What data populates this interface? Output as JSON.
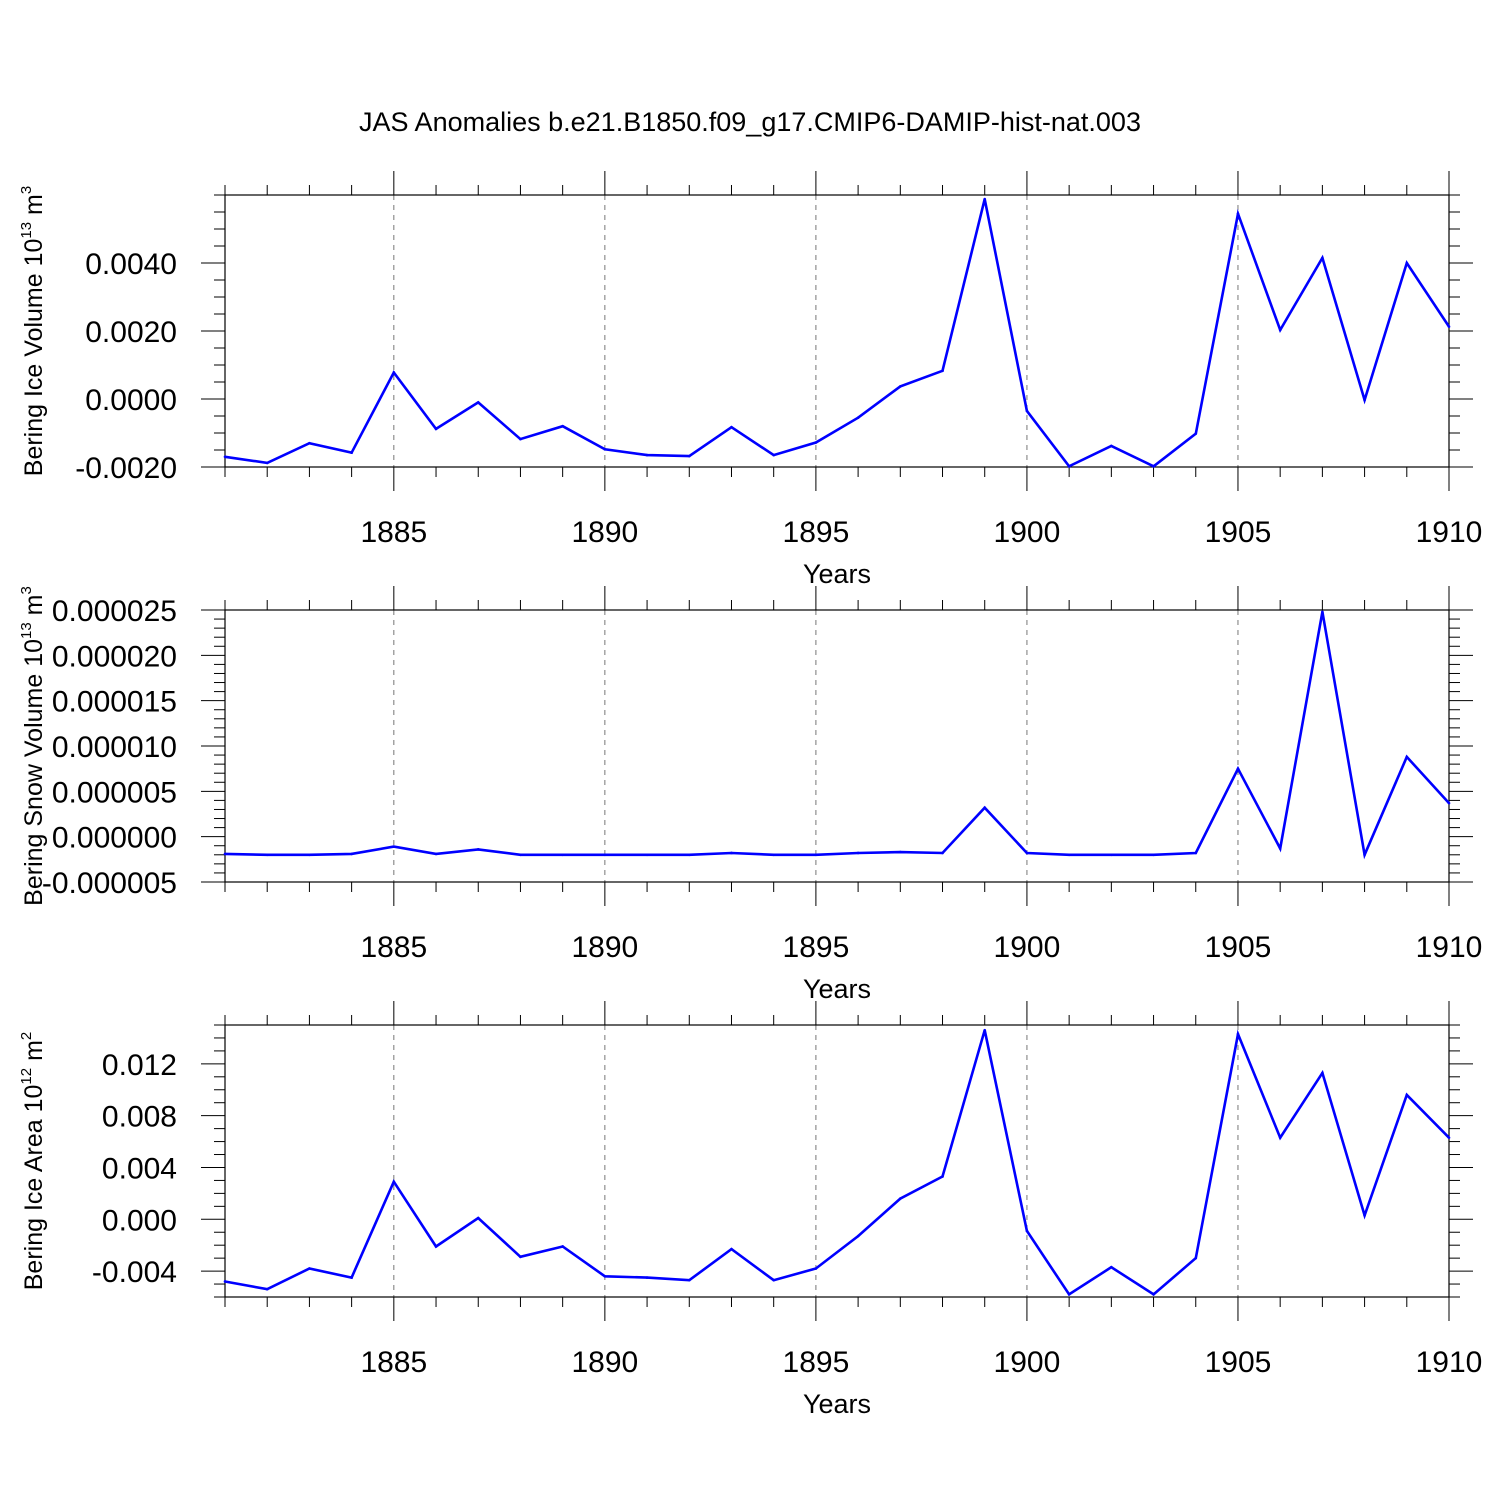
{
  "title": "JAS Anomalies b.e21.B1850.f09_g17.CMIP6-DAMIP-hist-nat.003",
  "colors": {
    "line": "#0000ff",
    "axis": "#000000",
    "grid": "#777777"
  },
  "chart_data": [
    {
      "type": "line",
      "ylabel_base": "Bering Ice Volume 10",
      "ylabel_exp": "13",
      "ylabel_unit": " m",
      "ylabel_unit_exp": "3",
      "xlabel": "Years",
      "xlim": [
        1881,
        1910
      ],
      "ylim": [
        -0.002,
        0.006
      ],
      "xticks": [
        1885,
        1890,
        1895,
        1900,
        1905,
        1910
      ],
      "xtick_labels": [
        "1885",
        "1890",
        "1895",
        "1900",
        "1905",
        "1910"
      ],
      "yticks": [
        -0.002,
        0.0,
        0.002,
        0.004
      ],
      "ytick_labels": [
        "-0.0020",
        "0.0000",
        "0.0020",
        "0.0040"
      ],
      "y_minor_step": 0.0005,
      "grid": "vertical dashed at major x ticks",
      "series": [
        {
          "name": "Bering Ice Volume",
          "x": [
            1881,
            1882,
            1883,
            1884,
            1885,
            1886,
            1887,
            1888,
            1889,
            1890,
            1891,
            1892,
            1893,
            1894,
            1895,
            1896,
            1897,
            1898,
            1899,
            1900,
            1901,
            1902,
            1903,
            1904,
            1905,
            1906,
            1907,
            1908,
            1909,
            1910
          ],
          "y": [
            -0.0017,
            -0.00188,
            -0.0013,
            -0.00158,
            0.00078,
            -0.00088,
            -0.0001,
            -0.00118,
            -0.0008,
            -0.00148,
            -0.00165,
            -0.00168,
            -0.00083,
            -0.00165,
            -0.00128,
            -0.00055,
            0.00037,
            0.00083,
            0.00588,
            -0.00035,
            -0.00198,
            -0.00138,
            -0.00198,
            -0.00102,
            0.00545,
            0.00203,
            0.00415,
            -3e-05,
            0.004,
            0.00213
          ]
        }
      ]
    },
    {
      "type": "line",
      "ylabel_base": "Bering Snow Volume 10",
      "ylabel_exp": "13",
      "ylabel_unit": " m",
      "ylabel_unit_exp": "3",
      "xlabel": "Years",
      "xlim": [
        1881,
        1910
      ],
      "ylim": [
        -5e-06,
        2.5e-05
      ],
      "xticks": [
        1885,
        1890,
        1895,
        1900,
        1905,
        1910
      ],
      "xtick_labels": [
        "1885",
        "1890",
        "1895",
        "1900",
        "1905",
        "1910"
      ],
      "yticks": [
        -5e-06,
        0.0,
        5e-06,
        1e-05,
        1.5e-05,
        2e-05,
        2.5e-05
      ],
      "ytick_labels": [
        "-0.000005",
        "0.000000",
        "0.000005",
        "0.000010",
        "0.000015",
        "0.000020",
        "0.000025"
      ],
      "y_minor_step": 1e-06,
      "grid": "vertical dashed at major x ticks",
      "series": [
        {
          "name": "Bering Snow Volume",
          "x": [
            1881,
            1882,
            1883,
            1884,
            1885,
            1886,
            1887,
            1888,
            1889,
            1890,
            1891,
            1892,
            1893,
            1894,
            1895,
            1896,
            1897,
            1898,
            1899,
            1900,
            1901,
            1902,
            1903,
            1904,
            1905,
            1906,
            1907,
            1908,
            1909,
            1910
          ],
          "y": [
            -1.9e-06,
            -2e-06,
            -2e-06,
            -1.9e-06,
            -1.1e-06,
            -1.9e-06,
            -1.4e-06,
            -2e-06,
            -2e-06,
            -2e-06,
            -2e-06,
            -2e-06,
            -1.8e-06,
            -2e-06,
            -2e-06,
            -1.8e-06,
            -1.7e-06,
            -1.8e-06,
            3.2e-06,
            -1.8e-06,
            -2e-06,
            -2e-06,
            -2e-06,
            -1.8e-06,
            7.5e-06,
            -1.3e-06,
            2.48e-05,
            -2e-06,
            8.8e-06,
            3.7e-06
          ]
        }
      ]
    },
    {
      "type": "line",
      "ylabel_base": "Bering Ice Area 10",
      "ylabel_exp": "12",
      "ylabel_unit": " m",
      "ylabel_unit_exp": "2",
      "xlabel": "Years",
      "xlim": [
        1881,
        1910
      ],
      "ylim": [
        -0.006,
        0.015
      ],
      "xticks": [
        1885,
        1890,
        1895,
        1900,
        1905,
        1910
      ],
      "xtick_labels": [
        "1885",
        "1890",
        "1895",
        "1900",
        "1905",
        "1910"
      ],
      "yticks": [
        -0.004,
        0.0,
        0.004,
        0.008,
        0.012
      ],
      "ytick_labels": [
        "-0.004",
        "0.000",
        "0.004",
        "0.008",
        "0.012"
      ],
      "y_minor_step": 0.001,
      "grid": "vertical dashed at major x ticks",
      "series": [
        {
          "name": "Bering Ice Area",
          "x": [
            1881,
            1882,
            1883,
            1884,
            1885,
            1886,
            1887,
            1888,
            1889,
            1890,
            1891,
            1892,
            1893,
            1894,
            1895,
            1896,
            1897,
            1898,
            1899,
            1900,
            1901,
            1902,
            1903,
            1904,
            1905,
            1906,
            1907,
            1908,
            1909,
            1910
          ],
          "y": [
            -0.0048,
            -0.0054,
            -0.0038,
            -0.0045,
            0.0029,
            -0.0021,
            0.0001,
            -0.0029,
            -0.0021,
            -0.0044,
            -0.0045,
            -0.0047,
            -0.0023,
            -0.0047,
            -0.0038,
            -0.0013,
            0.0016,
            0.0033,
            0.0146,
            -0.0009,
            -0.0058,
            -0.0037,
            -0.0058,
            -0.003,
            0.0143,
            0.0063,
            0.0113,
            0.0003,
            0.0096,
            0.0063
          ]
        }
      ]
    }
  ]
}
